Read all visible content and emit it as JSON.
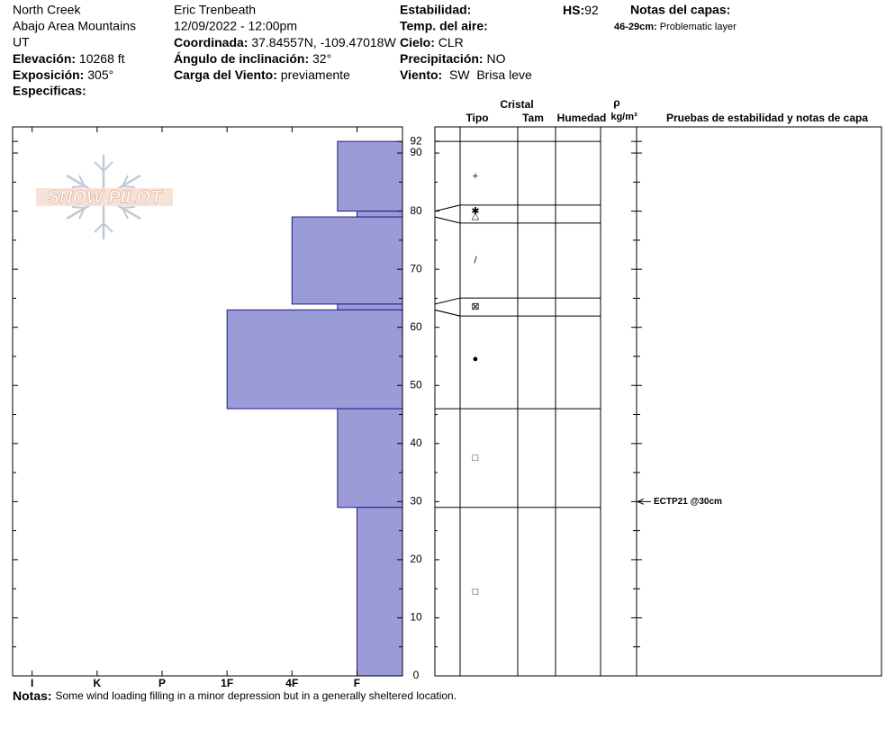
{
  "header": {
    "site": "North Creek",
    "area": "Abajo Area Mountains",
    "state": "UT",
    "elevation": {
      "label": "Elevación:",
      "value": "10268 ft"
    },
    "aspect": {
      "label": "Exposición:",
      "value": "305°"
    },
    "specifics": {
      "label": "Especificas:"
    },
    "observer": "Eric Trenbeath",
    "datetime": "12/09/2022 - 12:00pm",
    "coordinates": {
      "label": "Coordinada:",
      "value": "37.84557N, -109.47018W"
    },
    "slope_angle": {
      "label": "Ángulo de inclinación:",
      "value": "32°"
    },
    "wind_loading": {
      "label": "Carga del Viento:",
      "value": "previamente"
    },
    "stability": {
      "label": "Estabilidad:"
    },
    "air_temp": {
      "label": "Temp. del aire:"
    },
    "sky": {
      "label": "Cielo:",
      "value": "CLR"
    },
    "precipitation": {
      "label": "Precipitación:",
      "value": "NO"
    },
    "wind": {
      "label": "Viento:",
      "value": "SW  Brisa leve"
    },
    "hs": {
      "label": "HS:",
      "value": 92
    },
    "layer_notes": {
      "label": "Notas del capas:",
      "items": [
        {
          "label": "46-29cm:",
          "value": "Problematic layer"
        }
      ]
    }
  },
  "logo": "SNOW PILOT",
  "notes": {
    "label": "Notas:",
    "value": "Some wind loading filling in a minor depression but in a generally sheltered location."
  },
  "chart_data": {
    "type": "bar",
    "color": "#9b9bd7",
    "edge_color": "#1c1c8f",
    "xlim": [
      6.3,
      0.3
    ],
    "xticks": [
      {
        "value": 6,
        "label": "I"
      },
      {
        "value": 5,
        "label": "K"
      },
      {
        "value": 4,
        "label": "P"
      },
      {
        "value": 3,
        "label": "1F"
      },
      {
        "value": 2,
        "label": "4F"
      },
      {
        "value": 1,
        "label": "F"
      }
    ],
    "ylim": [
      0,
      94.5
    ],
    "yticks": [
      0,
      10,
      20,
      30,
      40,
      50,
      60,
      70,
      80,
      90,
      92
    ],
    "yticks_minor": [
      5,
      15,
      25,
      35,
      45,
      55,
      65,
      75,
      85
    ],
    "layers": [
      {
        "top": 92,
        "bottom": 80,
        "hardness": 1.3,
        "grain": [
          "+"
        ]
      },
      {
        "top": 80,
        "bottom": 79,
        "hardness": 1,
        "grain": [
          "✱",
          "△"
        ]
      },
      {
        "top": 79,
        "bottom": 64,
        "hardness": 2,
        "grain": [
          "/"
        ]
      },
      {
        "top": 64,
        "bottom": 63,
        "hardness": 1.3,
        "grain": [
          "⊠"
        ]
      },
      {
        "top": 63,
        "bottom": 46,
        "hardness": 3,
        "grain": [
          "●"
        ]
      },
      {
        "top": 46,
        "bottom": 29,
        "hardness": 1.3,
        "grain": [
          "□"
        ]
      },
      {
        "top": 29,
        "bottom": 0,
        "hardness": 1,
        "grain": [
          "□"
        ]
      }
    ],
    "columns": {
      "crystal": "Cristal",
      "type": "Tipo",
      "size": "Tam",
      "moisture": "Humedad",
      "density": "ρ",
      "density_unit": "kg/m³",
      "tests": "Pruebas de estabilidad y notas de capa"
    },
    "tests": [
      {
        "depth": 30,
        "label": "ECTP21 @30cm"
      }
    ]
  }
}
